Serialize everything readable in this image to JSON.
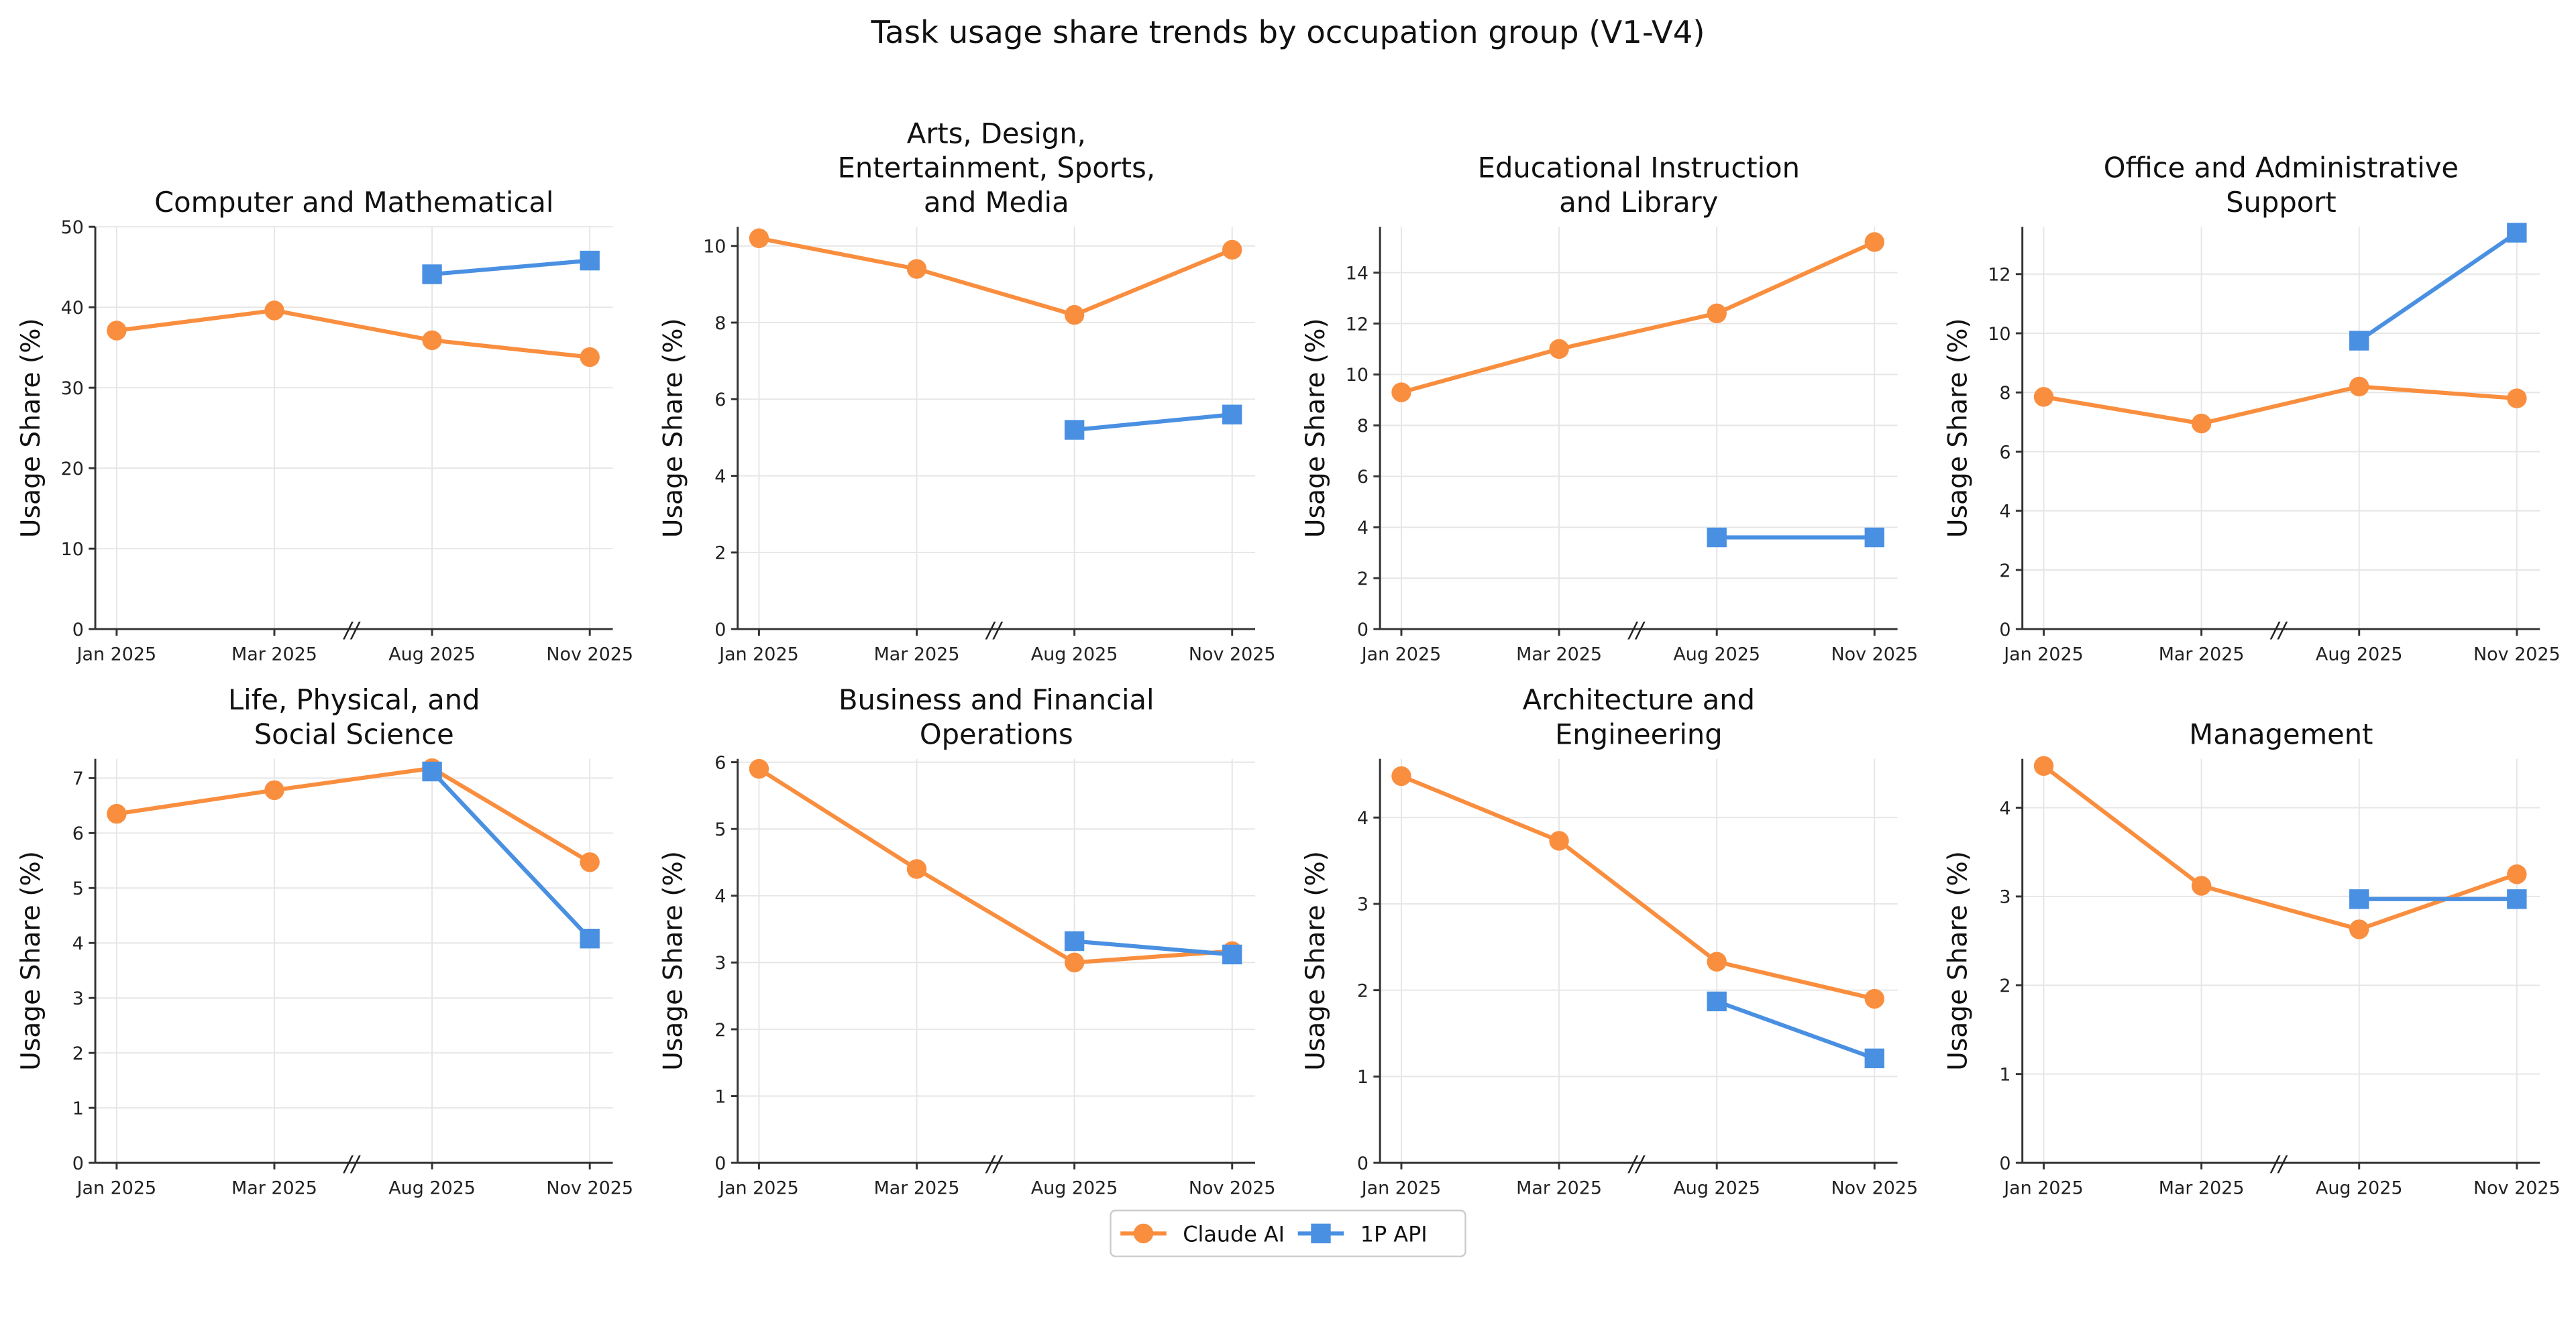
{
  "chart_data": [
    {
      "type": "line",
      "title": [
        "Computer and Mathematical"
      ],
      "ylabel": "Usage Share (%)",
      "categories": [
        "Jan 2025",
        "Mar 2025",
        "Aug 2025",
        "Nov 2025"
      ],
      "ylim": [
        0,
        50
      ],
      "yticks": [
        0,
        10,
        20,
        30,
        40,
        50
      ],
      "x_break_between": [
        "Mar 2025",
        "Aug 2025"
      ],
      "grid": true,
      "series": [
        {
          "name": "Claude AI",
          "values": [
            37.1,
            39.6,
            35.9,
            33.8
          ]
        },
        {
          "name": "1P API",
          "values": [
            null,
            null,
            44.1,
            45.8
          ]
        }
      ]
    },
    {
      "type": "line",
      "title": [
        "Arts, Design,",
        "Entertainment, Sports,",
        "and Media"
      ],
      "ylabel": "Usage Share (%)",
      "categories": [
        "Jan 2025",
        "Mar 2025",
        "Aug 2025",
        "Nov 2025"
      ],
      "ylim": [
        0,
        10.5
      ],
      "yticks": [
        0,
        2,
        4,
        6,
        8,
        10
      ],
      "x_break_between": [
        "Mar 2025",
        "Aug 2025"
      ],
      "grid": true,
      "series": [
        {
          "name": "Claude AI",
          "values": [
            10.2,
            9.4,
            8.2,
            9.9
          ]
        },
        {
          "name": "1P API",
          "values": [
            null,
            null,
            5.2,
            5.6
          ]
        }
      ]
    },
    {
      "type": "line",
      "title": [
        "Educational Instruction",
        "and Library"
      ],
      "ylabel": "Usage Share (%)",
      "categories": [
        "Jan 2025",
        "Mar 2025",
        "Aug 2025",
        "Nov 2025"
      ],
      "ylim": [
        0,
        15.8
      ],
      "yticks": [
        0,
        2,
        4,
        6,
        8,
        10,
        12,
        14
      ],
      "x_break_between": [
        "Mar 2025",
        "Aug 2025"
      ],
      "grid": true,
      "series": [
        {
          "name": "Claude AI",
          "values": [
            9.3,
            11.0,
            12.4,
            15.2
          ]
        },
        {
          "name": "1P API",
          "values": [
            null,
            null,
            3.6,
            3.6
          ]
        }
      ]
    },
    {
      "type": "line",
      "title": [
        "Office and Administrative",
        "Support"
      ],
      "ylabel": "Usage Share (%)",
      "categories": [
        "Jan 2025",
        "Mar 2025",
        "Aug 2025",
        "Nov 2025"
      ],
      "ylim": [
        0,
        13.6
      ],
      "yticks": [
        0,
        2,
        4,
        6,
        8,
        10,
        12
      ],
      "x_break_between": [
        "Mar 2025",
        "Aug 2025"
      ],
      "grid": true,
      "series": [
        {
          "name": "Claude AI",
          "values": [
            7.85,
            6.95,
            8.2,
            7.8
          ]
        },
        {
          "name": "1P API",
          "values": [
            null,
            null,
            9.75,
            13.4
          ]
        }
      ]
    },
    {
      "type": "line",
      "title": [
        "Life, Physical, and",
        "Social Science"
      ],
      "ylabel": "Usage Share (%)",
      "categories": [
        "Jan 2025",
        "Mar 2025",
        "Aug 2025",
        "Nov 2025"
      ],
      "ylim": [
        0,
        7.35
      ],
      "yticks": [
        0,
        1,
        2,
        3,
        4,
        5,
        6,
        7
      ],
      "x_break_between": [
        "Mar 2025",
        "Aug 2025"
      ],
      "grid": true,
      "series": [
        {
          "name": "Claude AI",
          "values": [
            6.35,
            6.78,
            7.18,
            5.47
          ]
        },
        {
          "name": "1P API",
          "values": [
            null,
            null,
            7.12,
            4.08
          ]
        }
      ]
    },
    {
      "type": "line",
      "title": [
        "Business and Financial",
        "Operations"
      ],
      "ylabel": "Usage Share (%)",
      "categories": [
        "Jan 2025",
        "Mar 2025",
        "Aug 2025",
        "Nov 2025"
      ],
      "ylim": [
        0,
        6.05
      ],
      "yticks": [
        0,
        1,
        2,
        3,
        4,
        5,
        6
      ],
      "x_break_between": [
        "Mar 2025",
        "Aug 2025"
      ],
      "grid": true,
      "series": [
        {
          "name": "Claude AI",
          "values": [
            5.9,
            4.4,
            3.0,
            3.17
          ]
        },
        {
          "name": "1P API",
          "values": [
            null,
            null,
            3.32,
            3.12
          ]
        }
      ]
    },
    {
      "type": "line",
      "title": [
        "Architecture and",
        "Engineering"
      ],
      "ylabel": "Usage Share (%)",
      "categories": [
        "Jan 2025",
        "Mar 2025",
        "Aug 2025",
        "Nov 2025"
      ],
      "ylim": [
        0,
        4.68
      ],
      "yticks": [
        0,
        1,
        2,
        3,
        4
      ],
      "x_break_between": [
        "Mar 2025",
        "Aug 2025"
      ],
      "grid": true,
      "series": [
        {
          "name": "Claude AI",
          "values": [
            4.48,
            3.73,
            2.33,
            1.9
          ]
        },
        {
          "name": "1P API",
          "values": [
            null,
            null,
            1.87,
            1.21
          ]
        }
      ]
    },
    {
      "type": "line",
      "title": [
        "Management"
      ],
      "ylabel": "Usage Share (%)",
      "categories": [
        "Jan 2025",
        "Mar 2025",
        "Aug 2025",
        "Nov 2025"
      ],
      "ylim": [
        0,
        4.55
      ],
      "yticks": [
        0,
        1,
        2,
        3,
        4
      ],
      "x_break_between": [
        "Mar 2025",
        "Aug 2025"
      ],
      "grid": true,
      "series": [
        {
          "name": "Claude AI",
          "values": [
            4.47,
            3.12,
            2.63,
            3.25
          ]
        },
        {
          "name": "1P API",
          "values": [
            null,
            null,
            2.97,
            2.97
          ]
        }
      ]
    }
  ],
  "figure_title": "Task usage share trends by occupation group (V1-V4)",
  "break_mark": "//",
  "legend": {
    "placement": "bottom-center",
    "items": [
      {
        "label": "Claude AI",
        "color": "#F98E3F",
        "marker": "circle"
      },
      {
        "label": "1P API",
        "color": "#4A90E2",
        "marker": "square"
      }
    ]
  },
  "colors": {
    "claude": "#F98E3F",
    "api": "#4A90E2"
  }
}
